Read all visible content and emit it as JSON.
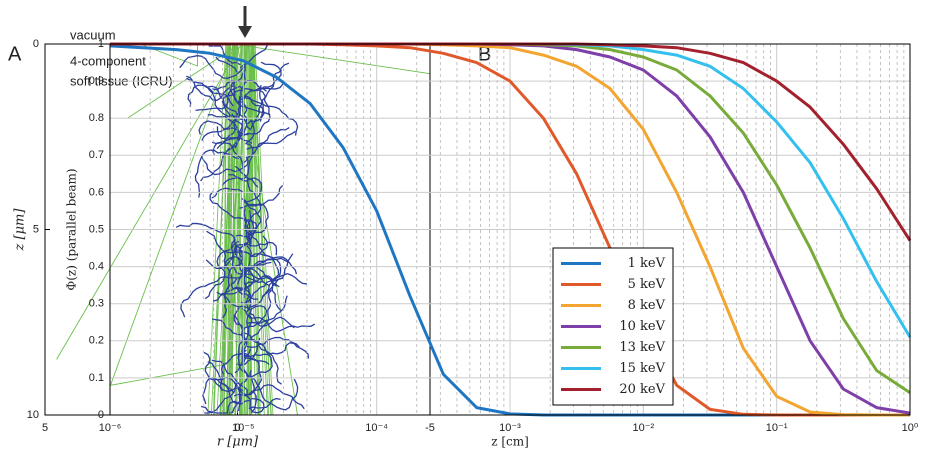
{
  "chart_data": [
    {
      "type": "tracks",
      "panel": "A",
      "annotations": [
        "vacuum",
        "4-component",
        "soft tissue (ICRU)"
      ],
      "xlabel": "r [μm]",
      "ylabel": "z [μm]",
      "xlim": [
        5,
        -5
      ],
      "xticks": [
        5,
        0,
        -5
      ],
      "ylim": [
        0,
        10
      ],
      "yticks": [
        0,
        5,
        10
      ],
      "y_inverted": true,
      "colors": {
        "primary": "#6abf4b",
        "secondary": "#2b3f9e"
      }
    },
    {
      "type": "line",
      "panel": "B",
      "xlabel": "z [cm]",
      "ylabel": "Φ(z)  (parallel beam)",
      "log_x": true,
      "grid": true,
      "legend": "lower left",
      "xlim": [
        1e-06,
        1
      ],
      "ylim": [
        0,
        1
      ],
      "xticks": [
        {
          "value": 1e-06,
          "label": "10⁻⁶"
        },
        {
          "value": 1e-05,
          "label": "10⁻⁵"
        },
        {
          "value": 0.0001,
          "label": "10⁻⁴"
        },
        {
          "value": 0.001,
          "label": "10⁻³"
        },
        {
          "value": 0.01,
          "label": "10⁻²"
        },
        {
          "value": 0.1,
          "label": "10⁻¹"
        },
        {
          "value": 1,
          "label": "10⁰"
        }
      ],
      "yticks": [
        0,
        0.1,
        0.2,
        0.3,
        0.4,
        0.5,
        0.6,
        0.7,
        0.8,
        0.9,
        1
      ],
      "x": [
        1e-06,
        1.78e-06,
        3.16e-06,
        5.62e-06,
        1e-05,
        1.78e-05,
        3.16e-05,
        5.62e-05,
        0.0001,
        0.000178,
        0.000316,
        0.000562,
        0.001,
        0.00178,
        0.00316,
        0.00562,
        0.01,
        0.0178,
        0.0316,
        0.0562,
        0.1,
        0.178,
        0.316,
        0.562,
        1
      ],
      "series": [
        {
          "name": "1 keV",
          "color": "#1f77c4",
          "values": [
            0.995,
            0.99,
            0.985,
            0.975,
            0.955,
            0.91,
            0.84,
            0.72,
            0.55,
            0.32,
            0.11,
            0.02,
            0.003,
            0,
            0,
            0,
            0,
            0,
            0,
            0,
            0,
            0,
            0,
            0,
            0
          ]
        },
        {
          "name": "5 keV",
          "color": "#e0592a",
          "values": [
            1,
            1,
            1,
            1,
            1,
            1,
            1,
            0.998,
            0.995,
            0.99,
            0.975,
            0.95,
            0.9,
            0.8,
            0.65,
            0.45,
            0.25,
            0.08,
            0.015,
            0.002,
            0,
            0,
            0,
            0,
            0
          ]
        },
        {
          "name": "8 keV",
          "color": "#f2a530",
          "values": [
            1,
            1,
            1,
            1,
            1,
            1,
            1,
            1,
            1,
            1,
            0.998,
            0.995,
            0.99,
            0.97,
            0.94,
            0.88,
            0.77,
            0.6,
            0.4,
            0.18,
            0.05,
            0.008,
            0.001,
            0,
            0
          ]
        },
        {
          "name": "10 keV",
          "color": "#7e3fa8",
          "values": [
            1,
            1,
            1,
            1,
            1,
            1,
            1,
            1,
            1,
            1,
            1,
            1,
            0.998,
            0.995,
            0.985,
            0.965,
            0.93,
            0.86,
            0.75,
            0.6,
            0.4,
            0.2,
            0.07,
            0.02,
            0.005
          ]
        },
        {
          "name": "13 keV",
          "color": "#78ab3a",
          "values": [
            1,
            1,
            1,
            1,
            1,
            1,
            1,
            1,
            1,
            1,
            1,
            1,
            1,
            0.998,
            0.995,
            0.985,
            0.965,
            0.93,
            0.86,
            0.76,
            0.62,
            0.45,
            0.26,
            0.12,
            0.06
          ]
        },
        {
          "name": "15 keV",
          "color": "#34c0ee",
          "values": [
            1,
            1,
            1,
            1,
            1,
            1,
            1,
            1,
            1,
            1,
            1,
            1,
            1,
            1,
            0.998,
            0.995,
            0.985,
            0.97,
            0.94,
            0.88,
            0.79,
            0.68,
            0.53,
            0.36,
            0.21
          ]
        },
        {
          "name": "20 keV",
          "color": "#a3202d",
          "values": [
            1,
            1,
            1,
            1,
            1,
            1,
            1,
            1,
            1,
            1,
            1,
            1,
            1,
            1,
            1,
            0.998,
            0.995,
            0.99,
            0.975,
            0.95,
            0.9,
            0.83,
            0.73,
            0.61,
            0.47
          ]
        }
      ]
    }
  ]
}
